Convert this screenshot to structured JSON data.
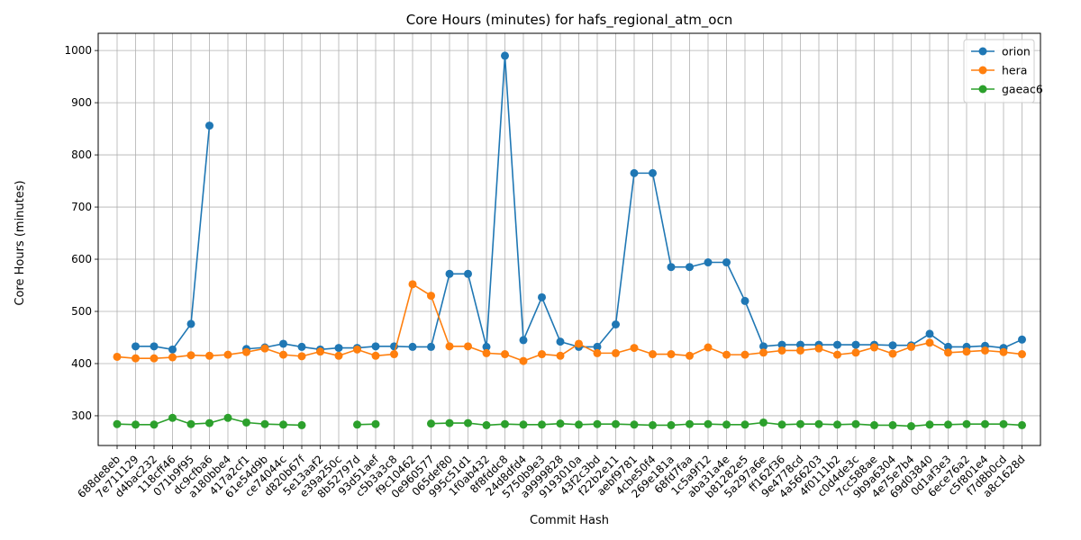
{
  "chart_data": {
    "type": "line",
    "title": "Core Hours (minutes) for hafs_regional_atm_ocn",
    "xlabel": "Commit Hash",
    "ylabel": "Core Hours (minutes)",
    "ylim": [
      243,
      1033
    ],
    "yticks": [
      300,
      400,
      500,
      600,
      700,
      800,
      900,
      1000
    ],
    "grid": true,
    "legend_position": "top-right",
    "x": [
      "688de8eb",
      "7e711129",
      "d4bac232",
      "118cff46",
      "071b9f95",
      "dc9cfba6",
      "a180bbe4",
      "417a2cf1",
      "61e54d9b",
      "ce74044c",
      "d820b67f",
      "5e13aaf2",
      "e39a250c",
      "8b52797d",
      "93d51aef",
      "c5b3a3c8",
      "f9c10462",
      "0e960577",
      "065def80",
      "995c51d1",
      "1f0ab432",
      "8f8fddc8",
      "24d8dfd4",
      "5750b9e3",
      "a9999828",
      "9193010a",
      "43f2c3bd",
      "f22b2e11",
      "aebf9781",
      "4cbe50f4",
      "269e181a",
      "68fd7faa",
      "1c5a9f12",
      "aba31a4e",
      "b81282e5",
      "5a297a6e",
      "ff162f36",
      "9e4778cd",
      "4a566203",
      "4f0111b2",
      "c0d4de3c",
      "7cc588ae",
      "9b9a6304",
      "4e75e7b4",
      "69d03840",
      "0d1af3e3",
      "6ece76a2",
      "c5f801e4",
      "f7d8b0cd",
      "a8c1628d"
    ],
    "series": [
      {
        "name": "orion",
        "color": "#1f77b4",
        "values": [
          null,
          433,
          433,
          427,
          476,
          856,
          null,
          428,
          431,
          438,
          432,
          427,
          430,
          430,
          433,
          433,
          432,
          432,
          572,
          572,
          432,
          990,
          445,
          527,
          442,
          432,
          432,
          475,
          765,
          765,
          585,
          585,
          594,
          594,
          520,
          433,
          436,
          436,
          436,
          436,
          436,
          436,
          435,
          435,
          457,
          432,
          432,
          434,
          430,
          446
        ]
      },
      {
        "name": "hera",
        "color": "#ff7f0e",
        "values": [
          413,
          410,
          410,
          412,
          416,
          415,
          417,
          422,
          429,
          417,
          414,
          423,
          415,
          427,
          415,
          418,
          552,
          530,
          433,
          433,
          420,
          418,
          405,
          418,
          415,
          438,
          420,
          420,
          430,
          418,
          418,
          415,
          431,
          417,
          417,
          421,
          425,
          425,
          429,
          417,
          421,
          431,
          419,
          432,
          440,
          421,
          423,
          425,
          422,
          418
        ]
      },
      {
        "name": "gaeac6",
        "color": "#2ca02c",
        "values": [
          284,
          283,
          283,
          296,
          284,
          286,
          296,
          287,
          284,
          283,
          282,
          null,
          null,
          283,
          284,
          null,
          null,
          285,
          286,
          286,
          282,
          284,
          283,
          283,
          285,
          283,
          284,
          284,
          283,
          282,
          282,
          284,
          284,
          283,
          283,
          287,
          283,
          284,
          284,
          283,
          284,
          282,
          282,
          280,
          283,
          283,
          284,
          284,
          284,
          282
        ]
      }
    ]
  }
}
